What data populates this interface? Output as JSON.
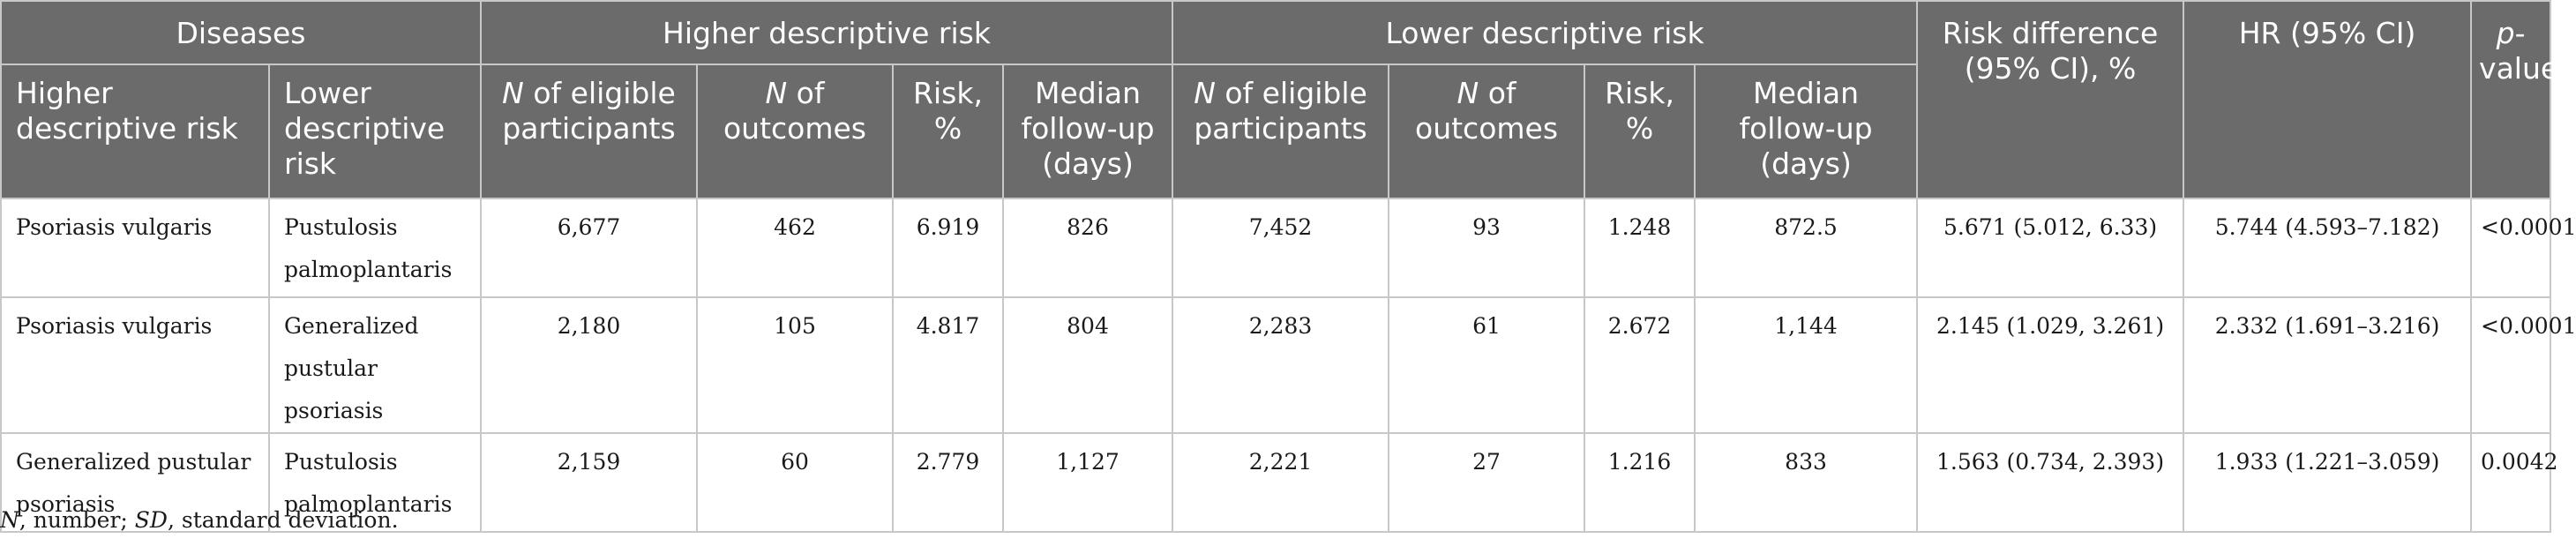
{
  "header": {
    "groups": {
      "diseases": "Diseases",
      "higher": "Higher descriptive risk",
      "lower": "Lower descriptive risk",
      "risk_difference": "Risk difference (95% CI), %",
      "hr": "HR (95% CI)",
      "p_prefix": "p",
      "p_suffix": "-value"
    },
    "sub": {
      "higher_risk_disease": "Higher descriptive risk",
      "lower_risk_disease": "Lower descriptive risk",
      "n_symbol": "N",
      "eligible_suffix": " of eligible participants",
      "outcomes_suffix": " of outcomes",
      "risk_pct": "Risk, %",
      "median_followup": "Median follow-up (days)"
    }
  },
  "rows": [
    {
      "higher_disease": "Psoriasis vulgaris",
      "lower_disease": "Pustulosis palmoplantaris",
      "h_eligible": "6,677",
      "h_outcomes": "462",
      "h_risk": "6.919",
      "h_median": "826",
      "l_eligible": "7,452",
      "l_outcomes": "93",
      "l_risk": "1.248",
      "l_median": "872.5",
      "risk_difference": "5.671 (5.012, 6.33)",
      "hr": "5.744 (4.593–7.182)",
      "p": "<0.0001"
    },
    {
      "higher_disease": "Psoriasis vulgaris",
      "lower_disease": "Generalized pustular psoriasis",
      "h_eligible": "2,180",
      "h_outcomes": "105",
      "h_risk": "4.817",
      "h_median": "804",
      "l_eligible": "2,283",
      "l_outcomes": "61",
      "l_risk": "2.672",
      "l_median": "1,144",
      "risk_difference": "2.145 (1.029, 3.261)",
      "hr": "2.332 (1.691–3.216)",
      "p": "<0.0001"
    },
    {
      "higher_disease": "Generalized pustular psoriasis",
      "lower_disease": "Pustulosis palmoplantaris",
      "h_eligible": "2,159",
      "h_outcomes": "60",
      "h_risk": "2.779",
      "h_median": "1,127",
      "l_eligible": "2,221",
      "l_outcomes": "27",
      "l_risk": "1.216",
      "l_median": "833",
      "risk_difference": "1.563 (0.734, 2.393)",
      "hr": "1.933 (1.221–3.059)",
      "p": "0.0042"
    }
  ],
  "footnote": {
    "n_symbol": "N",
    "n_text": ", number; ",
    "sd_symbol": "SD",
    "sd_text": ", standard deviation."
  }
}
